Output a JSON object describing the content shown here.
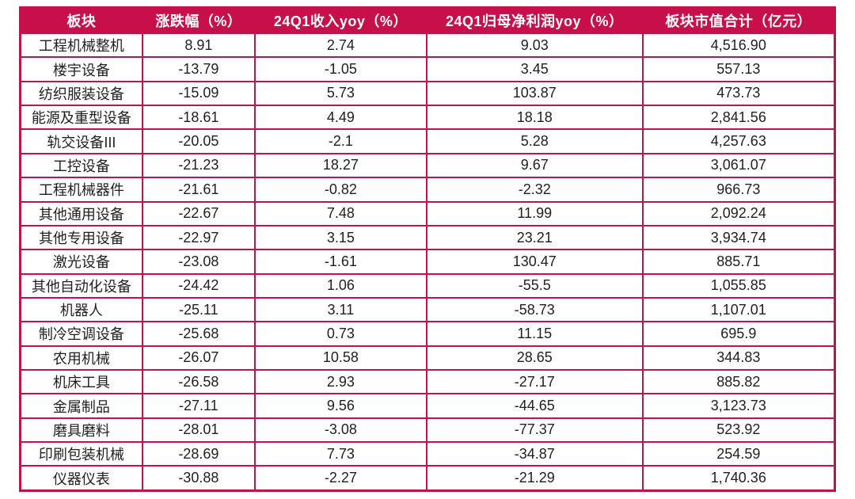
{
  "colors": {
    "header_bg": "#C7104A",
    "border": "#C7104A",
    "cell_bg": "#FFFFFF",
    "text": "#1F1F1F",
    "header_text": "#FFFFFF"
  },
  "chart_data": {
    "type": "table",
    "title": "",
    "columns": [
      "板块",
      "涨跌幅（%）",
      "24Q1收入yoy（%）",
      "24Q1归母净利润yoy（%）",
      "板块市值合计（亿元）"
    ],
    "rows": [
      [
        "工程机械整机",
        "8.91",
        "2.74",
        "9.03",
        "4,516.90"
      ],
      [
        "楼宇设备",
        "-13.79",
        "-1.05",
        "3.45",
        "557.13"
      ],
      [
        "纺织服装设备",
        "-15.09",
        "5.73",
        "103.87",
        "473.73"
      ],
      [
        "能源及重型设备",
        "-18.61",
        "4.49",
        "18.18",
        "2,841.56"
      ],
      [
        "轨交设备III",
        "-20.05",
        "-2.1",
        "5.28",
        "4,257.63"
      ],
      [
        "工控设备",
        "-21.23",
        "18.27",
        "9.67",
        "3,061.07"
      ],
      [
        "工程机械器件",
        "-21.61",
        "-0.82",
        "-2.32",
        "966.73"
      ],
      [
        "其他通用设备",
        "-22.67",
        "7.48",
        "11.99",
        "2,092.24"
      ],
      [
        "其他专用设备",
        "-22.97",
        "3.15",
        "23.21",
        "3,934.74"
      ],
      [
        "激光设备",
        "-23.08",
        "-1.61",
        "130.47",
        "885.71"
      ],
      [
        "其他自动化设备",
        "-24.42",
        "1.06",
        "-55.5",
        "1,055.85"
      ],
      [
        "机器人",
        "-25.11",
        "3.11",
        "-58.73",
        "1,107.01"
      ],
      [
        "制冷空调设备",
        "-25.68",
        "0.73",
        "11.15",
        "695.9"
      ],
      [
        "农用机械",
        "-26.07",
        "10.58",
        "28.65",
        "344.83"
      ],
      [
        "机床工具",
        "-26.58",
        "2.93",
        "-27.17",
        "885.82"
      ],
      [
        "金属制品",
        "-27.11",
        "9.56",
        "-44.65",
        "3,123.73"
      ],
      [
        "磨具磨料",
        "-28.01",
        "-3.08",
        "-77.37",
        "523.92"
      ],
      [
        "印刷包装机械",
        "-28.69",
        "7.73",
        "-34.87",
        "254.59"
      ],
      [
        "仪器仪表",
        "-30.88",
        "-2.27",
        "-21.29",
        "1,740.36"
      ]
    ]
  }
}
